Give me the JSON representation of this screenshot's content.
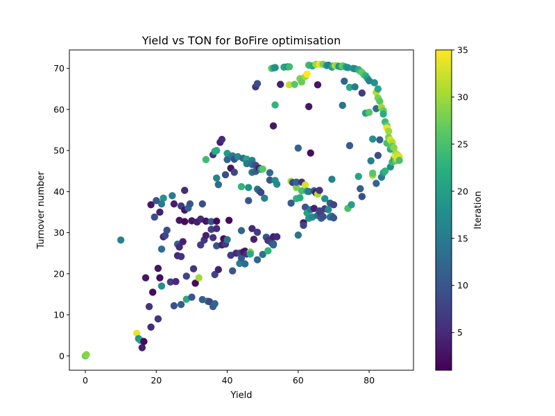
{
  "chart_data": {
    "type": "scatter",
    "title": "Yield vs TON for BoFire optimisation",
    "xlabel": "Yield",
    "ylabel": "Turnover number",
    "xlim": [
      -4.5,
      92.5
    ],
    "ylim": [
      -3.5,
      74.5
    ],
    "xticks": [
      "0",
      "20",
      "40",
      "60",
      "80"
    ],
    "yticks": [
      "0",
      "10",
      "20",
      "30",
      "40",
      "50",
      "60",
      "70"
    ],
    "grid": false,
    "legend": "none",
    "colorbar": {
      "label": "Iteration",
      "range": [
        1,
        35
      ],
      "ticks": [
        "5",
        "10",
        "15",
        "20",
        "25",
        "30",
        "35"
      ],
      "colormap": "viridis"
    },
    "points": [
      [
        0,
        0,
        27
      ],
      [
        0.3,
        0.3,
        29
      ],
      [
        14.5,
        5.5,
        34
      ],
      [
        15,
        4.2,
        18
      ],
      [
        15.5,
        3.8,
        20
      ],
      [
        16,
        2,
        4
      ],
      [
        16.5,
        3.5,
        2
      ],
      [
        17,
        19,
        3
      ],
      [
        18,
        12,
        6
      ],
      [
        18.5,
        7,
        5
      ],
      [
        19,
        15.5,
        2
      ],
      [
        20.5,
        9,
        6
      ],
      [
        20.5,
        21.3,
        3
      ],
      [
        21,
        19,
        2
      ],
      [
        21.5,
        17,
        18
      ],
      [
        21.5,
        26,
        13
      ],
      [
        22,
        29,
        4
      ],
      [
        22.5,
        29.3,
        8
      ],
      [
        22,
        38.4,
        18
      ],
      [
        21.5,
        37,
        15
      ],
      [
        18.5,
        36.8,
        3
      ],
      [
        19.5,
        33.8,
        9
      ],
      [
        20,
        37.8,
        10
      ],
      [
        21,
        35,
        4
      ],
      [
        23,
        30.6,
        9
      ],
      [
        24,
        18,
        7
      ],
      [
        25,
        12.2,
        9
      ],
      [
        25.5,
        18.1,
        5
      ],
      [
        25,
        37,
        4
      ],
      [
        24.5,
        39,
        15
      ],
      [
        26,
        27.2,
        12
      ],
      [
        26,
        24.4,
        5
      ],
      [
        26.5,
        33,
        3
      ],
      [
        27,
        36.5,
        7
      ],
      [
        27.5,
        27.8,
        4
      ],
      [
        28,
        35.5,
        3
      ],
      [
        28,
        40.3,
        5
      ],
      [
        28.5,
        19.4,
        8
      ],
      [
        29,
        36,
        12
      ],
      [
        29.5,
        37,
        10
      ],
      [
        30,
        32.9,
        3
      ],
      [
        26.5,
        26.5,
        5
      ],
      [
        27,
        24.2,
        6
      ],
      [
        27,
        12.5,
        11
      ],
      [
        28,
        32.7,
        2
      ],
      [
        28.5,
        13.8,
        22
      ],
      [
        30,
        14.3,
        10
      ],
      [
        30.5,
        21.2,
        6
      ],
      [
        31,
        17.7,
        2
      ],
      [
        31.5,
        32.6,
        4
      ],
      [
        32,
        19,
        30
      ],
      [
        32.5,
        27,
        7
      ],
      [
        32.5,
        33.3,
        5
      ],
      [
        33,
        37,
        9
      ],
      [
        33,
        13.7,
        11
      ],
      [
        33.5,
        28.2,
        6
      ],
      [
        34,
        29.3,
        4
      ],
      [
        34,
        32.8,
        3
      ],
      [
        34.5,
        13.3,
        14
      ],
      [
        35,
        13.2,
        8
      ],
      [
        35.5,
        30.8,
        7
      ],
      [
        35.5,
        32.7,
        10
      ],
      [
        36,
        12,
        11
      ],
      [
        36,
        28.8,
        6
      ],
      [
        36.5,
        12.7,
        12
      ],
      [
        36.5,
        19.8,
        8
      ],
      [
        37,
        26.8,
        10
      ],
      [
        37,
        31,
        5
      ],
      [
        37,
        32.8,
        2
      ],
      [
        37.5,
        21,
        4
      ],
      [
        36,
        49,
        6
      ],
      [
        36.5,
        49.8,
        21
      ],
      [
        37,
        50,
        22
      ],
      [
        37,
        43.3,
        16
      ],
      [
        37.5,
        41.7,
        13
      ],
      [
        34,
        47.8,
        24
      ],
      [
        38,
        52,
        4
      ],
      [
        38.5,
        52.7,
        5
      ],
      [
        38.5,
        27,
        4
      ],
      [
        39,
        28.5,
        2
      ],
      [
        39.5,
        44.1,
        9
      ],
      [
        39.5,
        27.2,
        7
      ],
      [
        40,
        49.3,
        19
      ],
      [
        40,
        28.3,
        14
      ],
      [
        40,
        47.8,
        12
      ],
      [
        40.5,
        33,
        2
      ],
      [
        41,
        45.7,
        3
      ],
      [
        41,
        24.5,
        7
      ],
      [
        41.5,
        48.7,
        15
      ],
      [
        41.5,
        20.7,
        10
      ],
      [
        42,
        47.9,
        9
      ],
      [
        42,
        44.7,
        8
      ],
      [
        42.5,
        25,
        5
      ],
      [
        43,
        48.5,
        17
      ],
      [
        43.5,
        22.5,
        16
      ],
      [
        43.5,
        25,
        8
      ],
      [
        44,
        41.2,
        23
      ],
      [
        44,
        23.8,
        11
      ],
      [
        44,
        30.5,
        12
      ],
      [
        44.5,
        48.1,
        13
      ],
      [
        44.5,
        25.3,
        4
      ],
      [
        45,
        22.4,
        13
      ],
      [
        45,
        25.5,
        3
      ],
      [
        45.5,
        47.9,
        21
      ],
      [
        45.5,
        46.8,
        15
      ],
      [
        45.5,
        24.8,
        6
      ],
      [
        46,
        41,
        18
      ],
      [
        46,
        37.8,
        10
      ],
      [
        46.5,
        25.3,
        29
      ],
      [
        46.5,
        24.8,
        22
      ],
      [
        47,
        47.6,
        16
      ],
      [
        47,
        46.6,
        13
      ],
      [
        47,
        44.7,
        14
      ],
      [
        47,
        31,
        5
      ],
      [
        47.5,
        28.4,
        4
      ],
      [
        48,
        46.4,
        9
      ],
      [
        48,
        44.9,
        11
      ],
      [
        48.5,
        40.6,
        15
      ],
      [
        48.5,
        30.1,
        7
      ],
      [
        48.5,
        23.4,
        12
      ],
      [
        49,
        40.2,
        11
      ],
      [
        49,
        45.7,
        4
      ],
      [
        49.5,
        45.4,
        19
      ],
      [
        49.5,
        39.8,
        8
      ],
      [
        50,
        45.5,
        26
      ],
      [
        50,
        24.7,
        14
      ],
      [
        50.5,
        38.4,
        16
      ],
      [
        51,
        28.9,
        10
      ],
      [
        51.5,
        25.6,
        23
      ],
      [
        51.5,
        28.1,
        6
      ],
      [
        52,
        44.6,
        13
      ],
      [
        52,
        42.8,
        10
      ],
      [
        52.5,
        27.5,
        8
      ],
      [
        53,
        29,
        4
      ],
      [
        53,
        27.3,
        10
      ],
      [
        53,
        27,
        12
      ],
      [
        53.5,
        42.7,
        18
      ],
      [
        54,
        41.8,
        17
      ],
      [
        54,
        29,
        5
      ],
      [
        48,
        65.5,
        6
      ],
      [
        48.5,
        66.3,
        9
      ],
      [
        52.5,
        70,
        27
      ],
      [
        53,
        70.1,
        22
      ],
      [
        53.5,
        70.2,
        18
      ],
      [
        53,
        56,
        3
      ],
      [
        53.5,
        61.1,
        23
      ],
      [
        55,
        66.1,
        4
      ],
      [
        56,
        70.3,
        21
      ],
      [
        57,
        70.4,
        18
      ],
      [
        57.5,
        70.4,
        24
      ],
      [
        57.5,
        66,
        32
      ],
      [
        58,
        42.5,
        30
      ],
      [
        58,
        37.2,
        11
      ],
      [
        58.5,
        42.2,
        8
      ],
      [
        59,
        66.1,
        26
      ],
      [
        59.5,
        41,
        28
      ],
      [
        59.5,
        42.3,
        12
      ],
      [
        59.5,
        38.3,
        23
      ],
      [
        60,
        29.4,
        14
      ],
      [
        60,
        50.6,
        12
      ],
      [
        60.5,
        38.5,
        22
      ],
      [
        60.5,
        67.5,
        28
      ],
      [
        61,
        66.7,
        27
      ],
      [
        61,
        42.3,
        6
      ],
      [
        61,
        40.2,
        25
      ],
      [
        61.5,
        32.4,
        3
      ],
      [
        61.5,
        31.8,
        8
      ],
      [
        62,
        68,
        30
      ],
      [
        62,
        41.6,
        33
      ],
      [
        62,
        36.2,
        10
      ],
      [
        62.5,
        68.6,
        35
      ],
      [
        62.5,
        40.1,
        20
      ],
      [
        62.5,
        34.8,
        21
      ],
      [
        63,
        70.8,
        24
      ],
      [
        63,
        60.7,
        3
      ],
      [
        63,
        40,
        15
      ],
      [
        63,
        33.5,
        19
      ],
      [
        63.5,
        49.4,
        2
      ],
      [
        63.5,
        35.6,
        15
      ],
      [
        64,
        70.6,
        22
      ],
      [
        64,
        33.8,
        17
      ],
      [
        64.5,
        40.2,
        9
      ],
      [
        64.5,
        35.9,
        4
      ],
      [
        65,
        71,
        30
      ],
      [
        65,
        39.7,
        3
      ],
      [
        65.5,
        66,
        3
      ],
      [
        65.5,
        39.4,
        31
      ],
      [
        65.5,
        34.2,
        13
      ],
      [
        66,
        71,
        34
      ],
      [
        66,
        35.3,
        8
      ],
      [
        66,
        40.3,
        6
      ],
      [
        66.5,
        34.3,
        7
      ],
      [
        66.5,
        33.5,
        12
      ],
      [
        67,
        71,
        28
      ],
      [
        67,
        33.9,
        9
      ],
      [
        67.5,
        35.8,
        7
      ],
      [
        67.5,
        38.3,
        18
      ],
      [
        68,
        70.7,
        20
      ],
      [
        68.5,
        70.8,
        16
      ],
      [
        68.5,
        35.6,
        17
      ],
      [
        69,
        33.8,
        14
      ],
      [
        69,
        37.2,
        11
      ],
      [
        69.5,
        70.3,
        19
      ],
      [
        69.5,
        43,
        16
      ],
      [
        69.5,
        34,
        13
      ],
      [
        70,
        36.8,
        8
      ],
      [
        70,
        33.6,
        10
      ],
      [
        70,
        70.6,
        23
      ],
      [
        70.5,
        70.7,
        32
      ],
      [
        71,
        70.6,
        29
      ],
      [
        71.5,
        70.5,
        18
      ],
      [
        72,
        70.4,
        21
      ],
      [
        72.5,
        70.6,
        27
      ],
      [
        72.5,
        61,
        14
      ],
      [
        73,
        66.9,
        12
      ],
      [
        73,
        70.5,
        26
      ],
      [
        73.5,
        70.3,
        20
      ],
      [
        74,
        70.2,
        18
      ],
      [
        74,
        35.9,
        25
      ],
      [
        74.5,
        51.2,
        11
      ],
      [
        74.5,
        65.4,
        22
      ],
      [
        75,
        36.8,
        20
      ],
      [
        75.5,
        70,
        19
      ],
      [
        76,
        65.5,
        15
      ],
      [
        76,
        69.9,
        17
      ],
      [
        77,
        69.7,
        22
      ],
      [
        77,
        43.7,
        21
      ],
      [
        77.5,
        69.3,
        24
      ],
      [
        77.5,
        40.7,
        11
      ],
      [
        78,
        38.8,
        9
      ],
      [
        78,
        64,
        7
      ],
      [
        78,
        69,
        27
      ],
      [
        78.5,
        68.5,
        26
      ],
      [
        79,
        59.1,
        20
      ],
      [
        79,
        68.2,
        23
      ],
      [
        79.5,
        67.6,
        21
      ],
      [
        80,
        59.3,
        26
      ],
      [
        80,
        67,
        16
      ],
      [
        80.5,
        47.5,
        16
      ],
      [
        81,
        44,
        30
      ],
      [
        81,
        52.8,
        18
      ],
      [
        81,
        44.5,
        26
      ],
      [
        81.5,
        66.5,
        18
      ],
      [
        82,
        64.2,
        31
      ],
      [
        82,
        42,
        12
      ],
      [
        82,
        60.2,
        13
      ],
      [
        82.5,
        48.8,
        9
      ],
      [
        82.5,
        62.8,
        28
      ],
      [
        82.5,
        65,
        21
      ],
      [
        83,
        62,
        26
      ],
      [
        83,
        52.6,
        11
      ],
      [
        83.5,
        60.5,
        30
      ],
      [
        83.5,
        43.5,
        15
      ],
      [
        84,
        59.7,
        27
      ],
      [
        84,
        44.6,
        20
      ],
      [
        84,
        58.9,
        22
      ],
      [
        84.5,
        57,
        24
      ],
      [
        84.5,
        45,
        23
      ],
      [
        85,
        56,
        27
      ],
      [
        85,
        55.5,
        34
      ],
      [
        85,
        51.8,
        25
      ],
      [
        85.5,
        54.7,
        30
      ],
      [
        85.5,
        53.2,
        28
      ],
      [
        86,
        52.6,
        33
      ],
      [
        86,
        46,
        18
      ],
      [
        86,
        50.3,
        22
      ],
      [
        86.5,
        52,
        31
      ],
      [
        86.5,
        51,
        26
      ],
      [
        86.5,
        47.2,
        24
      ],
      [
        87,
        50.7,
        29
      ],
      [
        87,
        48.2,
        33
      ],
      [
        87,
        47.8,
        22
      ],
      [
        87.5,
        49.3,
        30
      ],
      [
        87.5,
        48.5,
        35
      ],
      [
        87.5,
        47.5,
        27
      ],
      [
        88,
        48.2,
        28
      ],
      [
        88,
        49,
        32
      ],
      [
        88,
        47.9,
        34
      ],
      [
        88.5,
        48.5,
        33
      ],
      [
        88.5,
        47.6,
        25
      ],
      [
        10,
        28.2,
        16
      ]
    ]
  }
}
